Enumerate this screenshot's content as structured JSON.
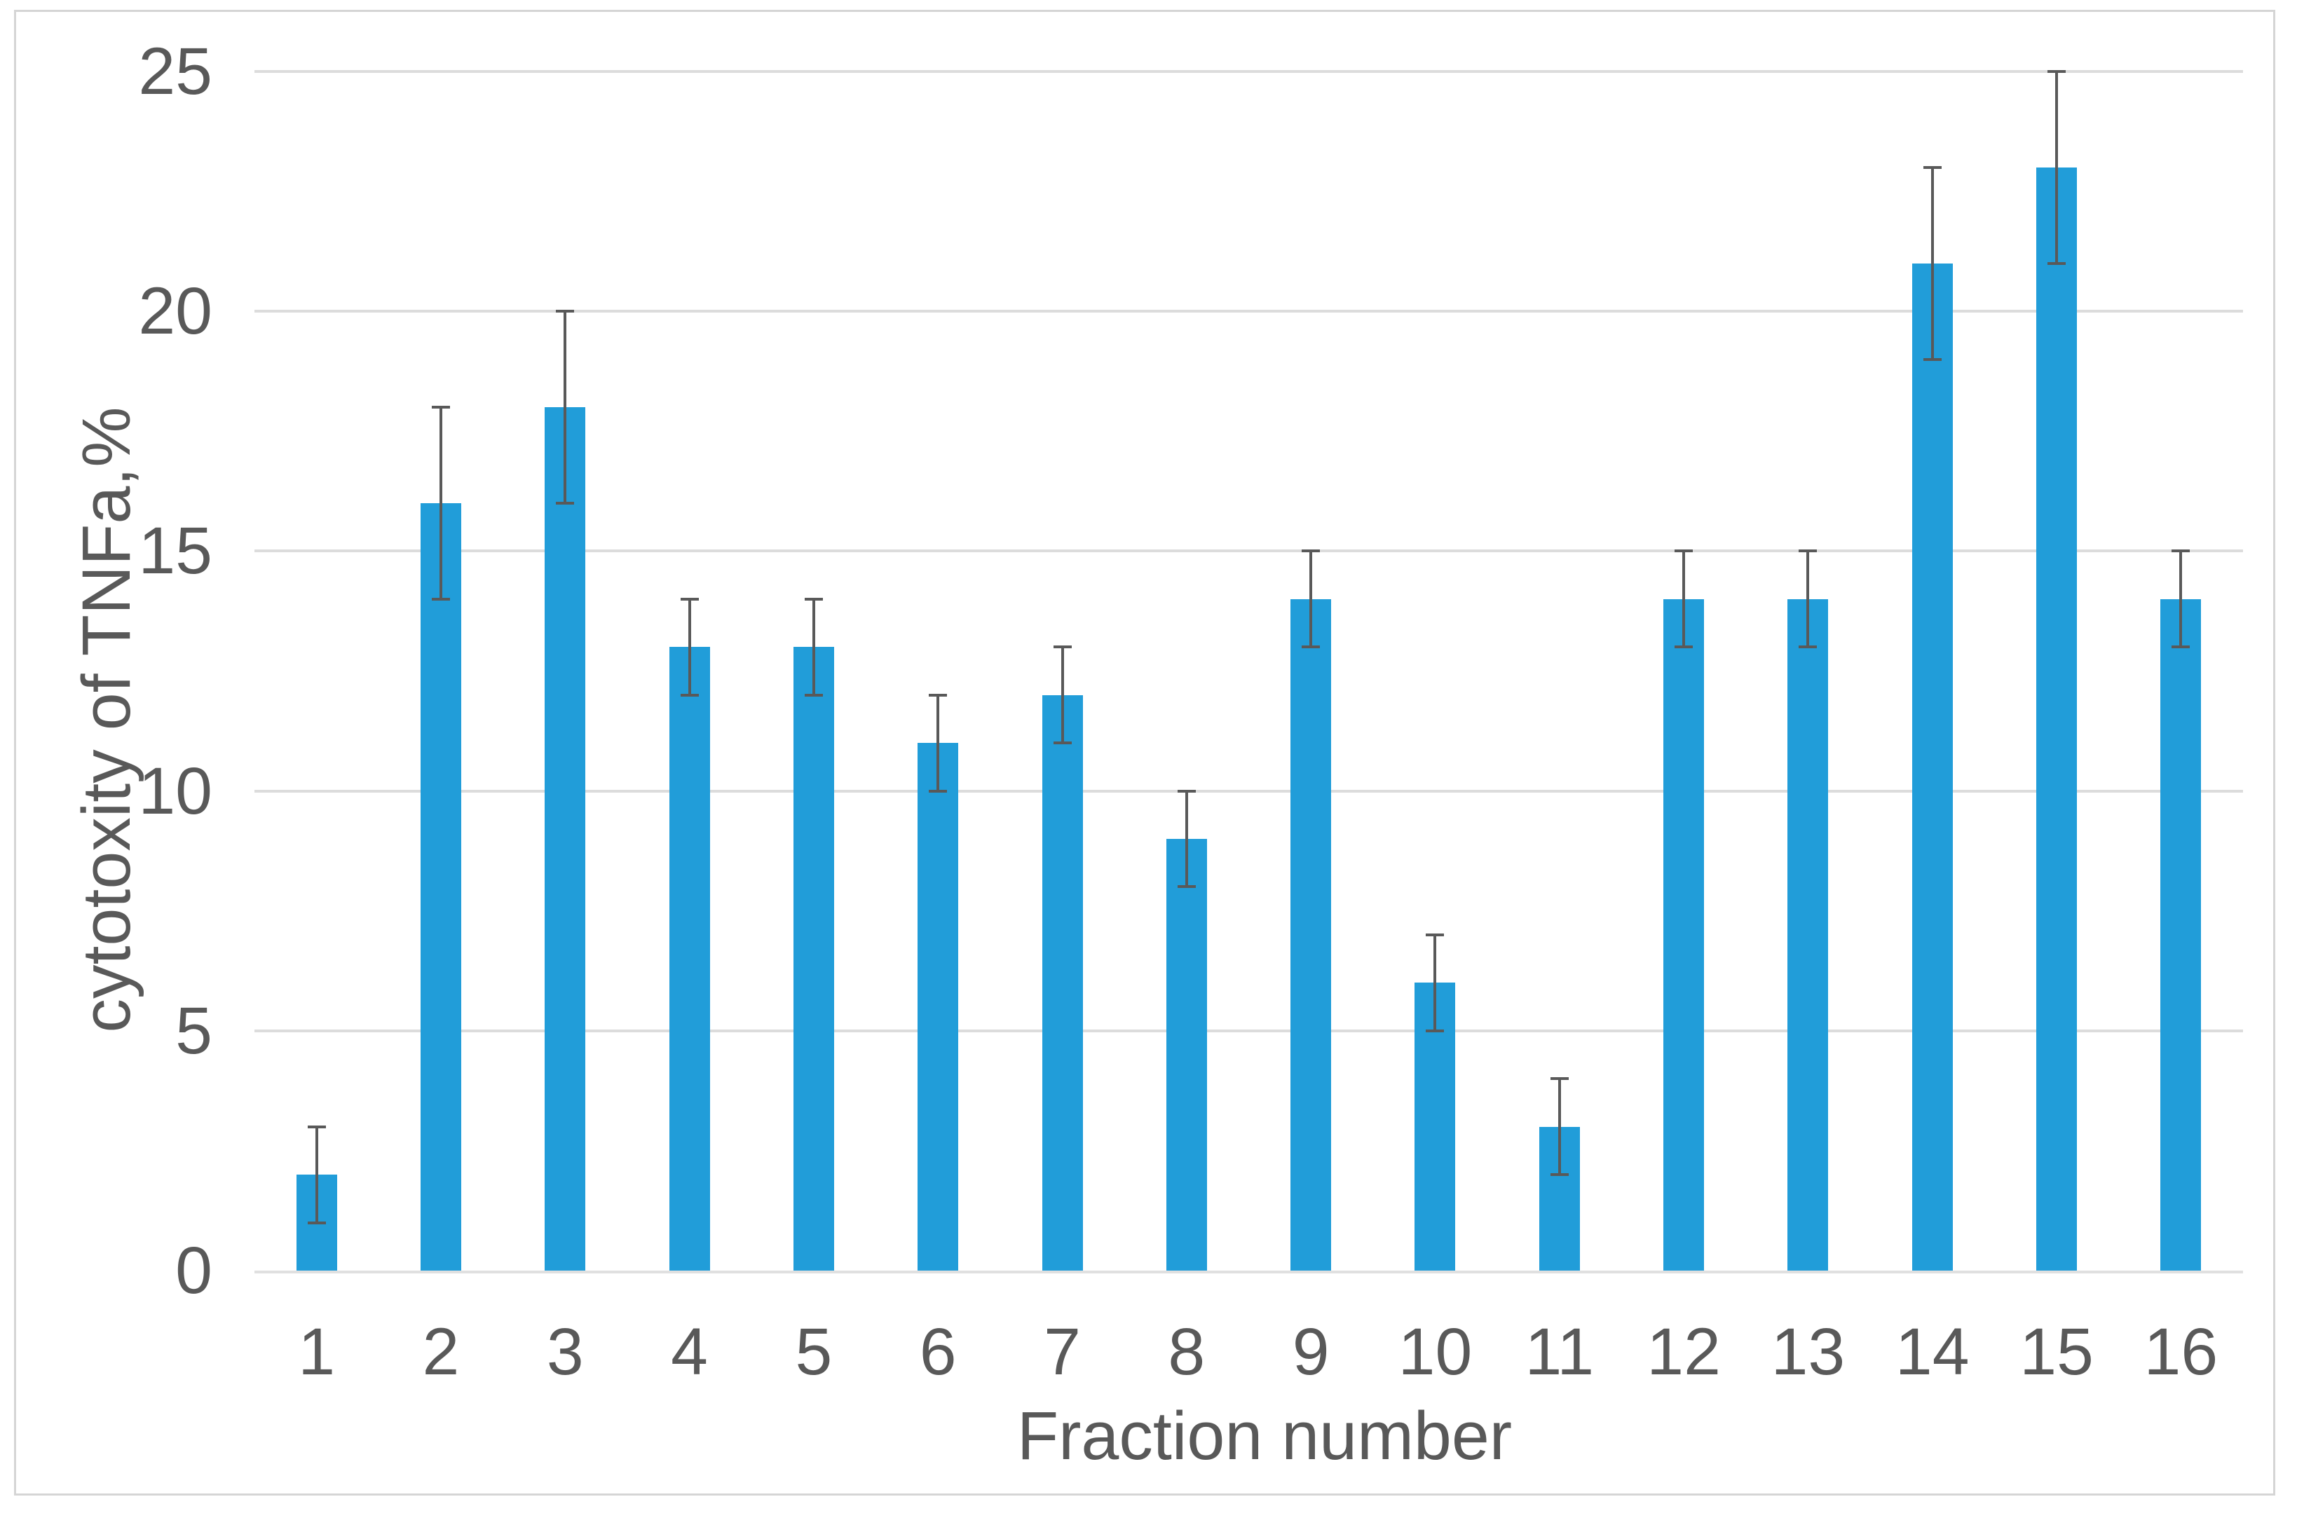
{
  "chart_data": {
    "type": "bar",
    "title": "",
    "categories": [
      "1",
      "2",
      "3",
      "4",
      "5",
      "6",
      "7",
      "8",
      "9",
      "10",
      "11",
      "12",
      "13",
      "14",
      "15",
      "16"
    ],
    "series": [
      {
        "name": "cytotoxity of TNFa,%",
        "values": [
          2,
          16,
          18,
          13,
          13,
          11,
          12,
          9,
          14,
          6,
          3,
          14,
          14,
          21,
          23,
          14
        ],
        "error_bars": {
          "mode": "symmetric",
          "values": [
            1,
            2,
            2,
            1,
            1,
            1,
            1,
            1,
            1,
            1,
            1,
            1,
            1,
            2,
            2,
            1
          ]
        }
      }
    ],
    "xlabel": "Fraction number",
    "ylabel": "cytotoxity of TNFa,%",
    "ylim": [
      0,
      25
    ],
    "yticks": [
      0,
      5,
      10,
      15,
      20,
      25
    ],
    "grid": "horizontal",
    "legend": "none",
    "colors": {
      "bar": "#219dd9",
      "error_bar": "#595959",
      "gridline": "#dcdcdc",
      "axis_line": "#e0e0e0",
      "text": "#595959",
      "frame_border": "#d5d5d5",
      "background": "#ffffff"
    }
  }
}
